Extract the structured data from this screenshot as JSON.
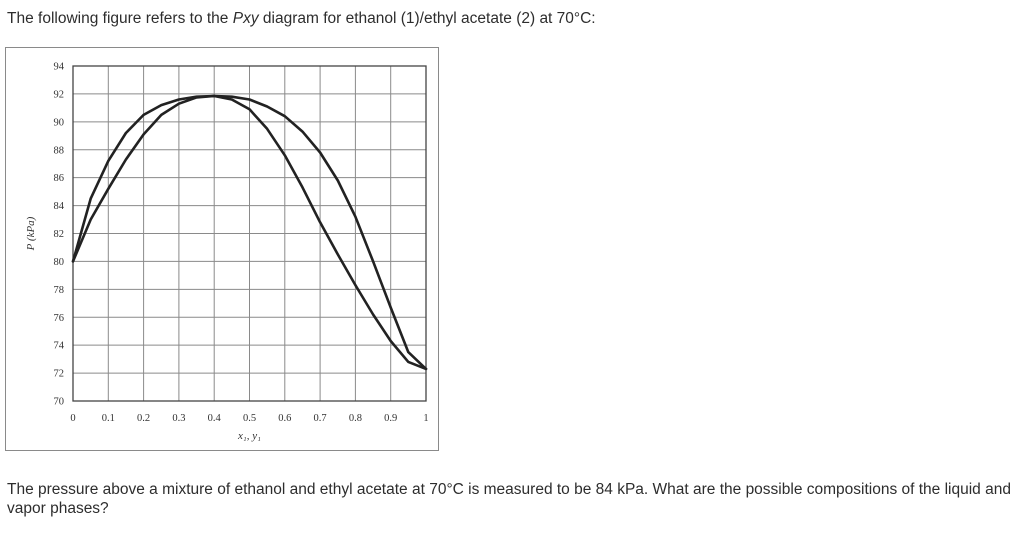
{
  "intro": {
    "prefix": "The following figure refers to the ",
    "emph": "Pxy",
    "suffix": " diagram for ethanol (1)/ethyl acetate (2) at 70°C:"
  },
  "question": "The pressure above a mixture of ethanol and ethyl acetate at 70°C is measured to be 84 kPa. What are the possible compositions of the liquid and vapor phases?",
  "chart_data": {
    "type": "line",
    "title": "",
    "xlabel": "x₁, y₁",
    "ylabel": "P (kPa)",
    "xlim": [
      0,
      1
    ],
    "ylim": [
      70,
      94
    ],
    "grid": true,
    "x_ticks": [
      "0",
      "0.1",
      "0.2",
      "0.3",
      "0.4",
      "0.5",
      "0.6",
      "0.7",
      "0.8",
      "0.9",
      "1"
    ],
    "y_ticks": [
      "70",
      "72",
      "74",
      "76",
      "78",
      "80",
      "82",
      "84",
      "86",
      "88",
      "90",
      "92",
      "94"
    ],
    "x_tick_values": [
      0,
      0.1,
      0.2,
      0.3,
      0.4,
      0.5,
      0.6,
      0.7,
      0.8,
      0.9,
      1.0
    ],
    "y_tick_values": [
      70,
      72,
      74,
      76,
      78,
      80,
      82,
      84,
      86,
      88,
      90,
      92,
      94
    ],
    "series": [
      {
        "x": [
          0,
          0.05,
          0.1,
          0.15,
          0.2,
          0.25,
          0.3,
          0.35,
          0.4,
          0.45,
          0.5,
          0.55,
          0.6,
          0.65,
          0.7,
          0.75,
          0.8,
          0.85,
          0.9,
          0.95,
          1.0
        ],
        "y": [
          80.0,
          84.5,
          87.2,
          89.2,
          90.5,
          91.2,
          91.6,
          91.8,
          91.85,
          91.8,
          91.6,
          91.1,
          90.4,
          89.3,
          87.8,
          85.8,
          83.2,
          80.0,
          76.7,
          73.5,
          72.3
        ]
      },
      {
        "x": [
          0,
          0.05,
          0.1,
          0.15,
          0.2,
          0.25,
          0.3,
          0.35,
          0.4,
          0.45,
          0.5,
          0.55,
          0.6,
          0.65,
          0.7,
          0.75,
          0.8,
          0.85,
          0.9,
          0.95,
          1.0
        ],
        "y": [
          80.0,
          83.0,
          85.2,
          87.3,
          89.1,
          90.5,
          91.3,
          91.75,
          91.85,
          91.6,
          90.9,
          89.5,
          87.6,
          85.3,
          82.8,
          80.5,
          78.3,
          76.2,
          74.3,
          72.8,
          72.3
        ]
      }
    ],
    "colors": {
      "curve": "#222222",
      "grid": "#8a8a8a",
      "frame": "#444444"
    }
  }
}
